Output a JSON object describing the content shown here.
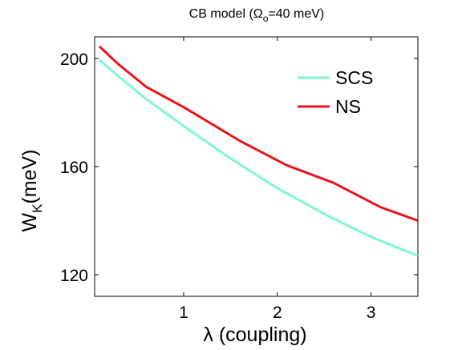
{
  "chart_data": {
    "type": "line",
    "title": {
      "prefix": "CB model (",
      "symbol": "Ω",
      "subscript": "o",
      "suffix": "=40 meV)"
    },
    "xlabel": "λ (coupling)",
    "ylabel": {
      "main": "W",
      "subscript": "K",
      "suffix": "(meV)"
    },
    "xlim": [
      0.05,
      3.5
    ],
    "ylim": [
      112,
      208
    ],
    "xticks": [
      1,
      2,
      3
    ],
    "xtick_labels": [
      "1",
      "2",
      "3"
    ],
    "yticks": [
      120,
      160,
      200
    ],
    "ytick_labels": [
      "120",
      "160",
      "200"
    ],
    "grid": false,
    "legend_position": "top-right",
    "series": [
      {
        "name": "SCS",
        "color": "#7ff5d8",
        "x": [
          0.1,
          0.3,
          0.6,
          1.0,
          1.5,
          2.0,
          2.5,
          3.0,
          3.5
        ],
        "y": [
          199.5,
          193.5,
          185.0,
          175.0,
          163.0,
          152.0,
          142.5,
          134.0,
          127.0
        ]
      },
      {
        "name": "NS",
        "color": "#e8141b",
        "x": [
          0.1,
          0.3,
          0.6,
          1.0,
          1.6,
          2.1,
          2.6,
          3.1,
          3.5
        ],
        "y": [
          204.5,
          198.0,
          189.5,
          182.0,
          169.5,
          160.5,
          154.0,
          145.0,
          140.0
        ]
      }
    ]
  }
}
